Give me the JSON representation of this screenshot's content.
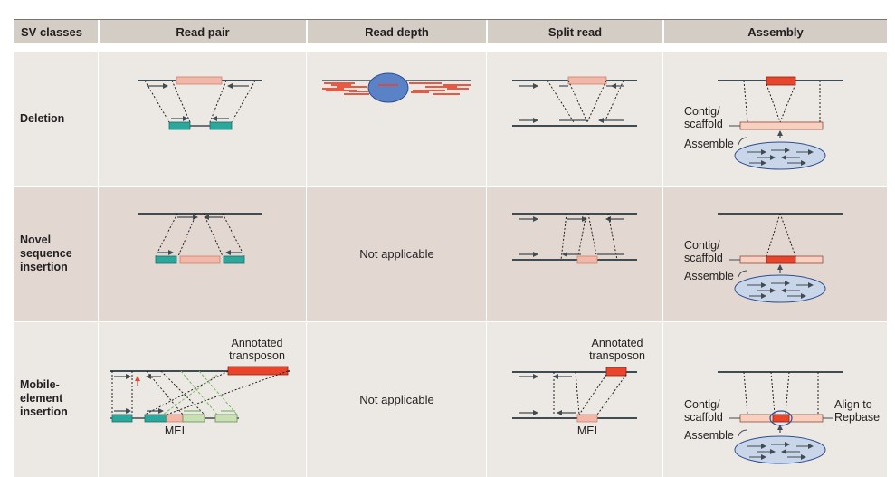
{
  "headers": {
    "sv_classes": "SV classes",
    "read_pair": "Read pair",
    "read_depth": "Read depth",
    "split_read": "Split read",
    "assembly": "Assembly"
  },
  "rows": {
    "deletion": "Deletion",
    "novel_sequence_insertion": "Novel sequence insertion",
    "mobile_element_insertion": "Mobile-element insertion"
  },
  "labels": {
    "not_applicable": "Not applicable",
    "contig_scaffold": "Contig/ scaffold",
    "assemble": "Assemble",
    "annotated_transposon": "Annotated transposon",
    "mei": "MEI",
    "align_to_repbase": "Align to Repbase"
  },
  "colors": {
    "header_bg": "#d4cdc5",
    "row_light": "#ece8e3",
    "row_dark": "#e2d8d1",
    "genome_line": "#414b52",
    "read_teal": "#2ba79c",
    "deletion_pink": "#f2b7a8",
    "transposon_red": "#e8452c",
    "mei_green": "#c8e0b4",
    "ellipse_blue": "#5a82c6",
    "contig_pink": "#f9cfc0"
  }
}
